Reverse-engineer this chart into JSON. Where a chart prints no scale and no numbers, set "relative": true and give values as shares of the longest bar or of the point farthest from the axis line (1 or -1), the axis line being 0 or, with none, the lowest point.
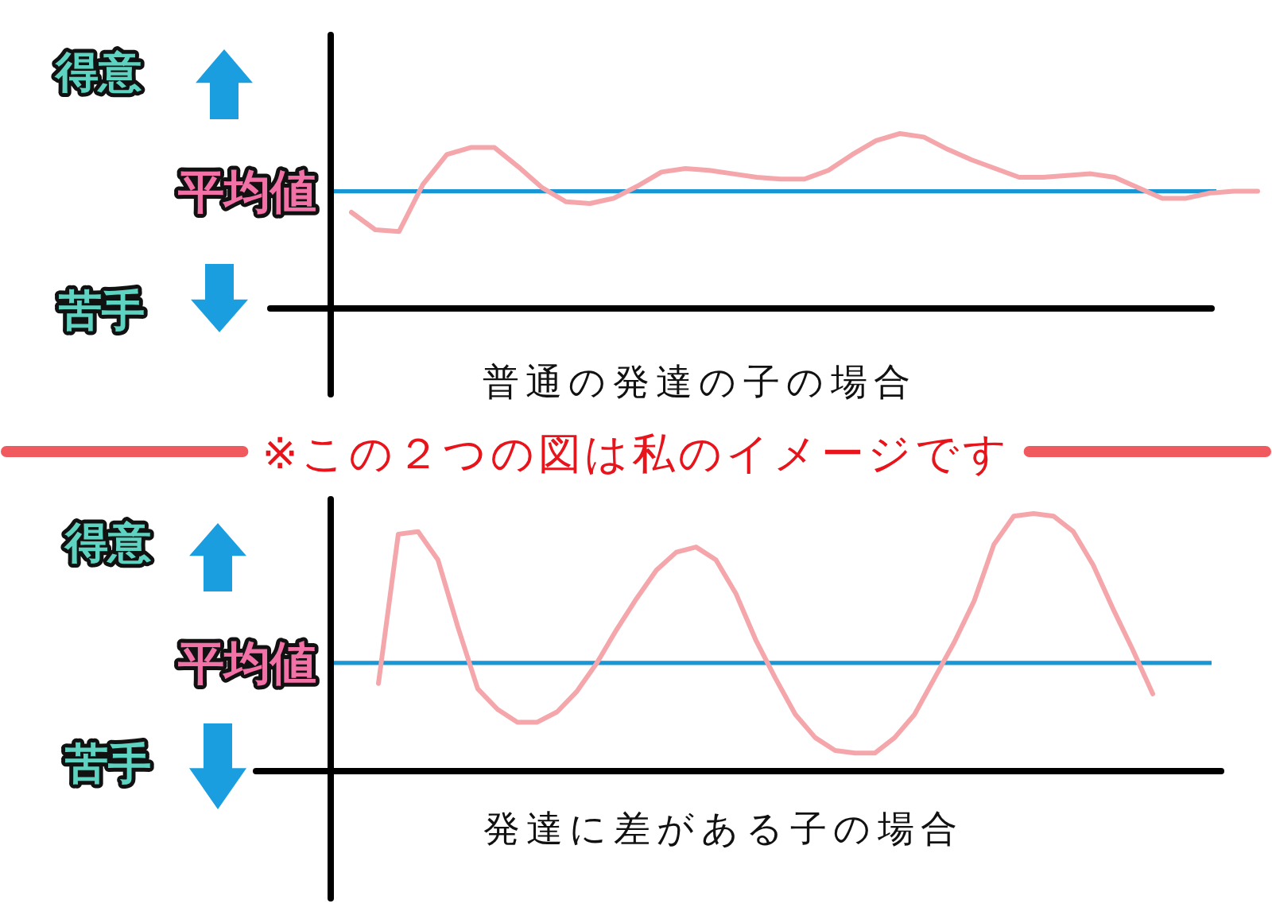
{
  "chart_data": [
    {
      "type": "line",
      "relative": true,
      "xlabel": "普通の発達の子の場合",
      "categories": [
        null,
        null,
        null,
        null,
        null,
        null,
        null,
        null,
        null,
        null,
        null,
        null,
        null,
        null,
        null,
        null,
        null,
        null,
        null,
        null,
        null,
        null,
        null,
        null,
        null,
        null,
        null,
        null,
        null,
        null,
        null,
        null,
        null,
        null,
        null,
        null,
        null,
        null,
        null
      ],
      "series": [
        {
          "color": "#f4a6ab",
          "values": [
            0.55,
            0.45,
            0.44,
            0.71,
            0.88,
            0.92,
            0.92,
            0.81,
            0.69,
            0.61,
            0.6,
            0.63,
            0.7,
            0.78,
            0.8,
            0.79,
            0.77,
            0.75,
            0.74,
            0.74,
            0.79,
            0.88,
            0.96,
            1.0,
            0.98,
            0.91,
            0.85,
            0.8,
            0.75,
            0.75,
            0.76,
            0.77,
            0.75,
            0.69,
            0.63,
            0.63,
            0.66,
            0.67,
            0.67
          ]
        }
      ],
      "ref_lines": [
        {
          "axis": "y",
          "value": 0.67,
          "label": "平均値",
          "color": "#1a96d4"
        }
      ],
      "annotations": [
        "得意",
        "苦手",
        "※この２つの図は私のイメージです"
      ]
    },
    {
      "type": "line",
      "relative": true,
      "xlabel": "発達に差がある子の場合",
      "categories": [
        null,
        null,
        null,
        null,
        null,
        null,
        null,
        null,
        null,
        null,
        null,
        null,
        null,
        null,
        null,
        null,
        null,
        null,
        null,
        null,
        null,
        null,
        null,
        null,
        null,
        null,
        null,
        null,
        null,
        null,
        null,
        null,
        null,
        null,
        null,
        null,
        null,
        null,
        null,
        null
      ],
      "series": [
        {
          "color": "#f4a6ab",
          "values": [
            0.34,
            0.92,
            0.93,
            0.82,
            0.56,
            0.32,
            0.24,
            0.19,
            0.19,
            0.23,
            0.31,
            0.42,
            0.55,
            0.67,
            0.78,
            0.85,
            0.87,
            0.82,
            0.69,
            0.51,
            0.36,
            0.22,
            0.13,
            0.08,
            0.07,
            0.07,
            0.13,
            0.22,
            0.36,
            0.5,
            0.66,
            0.88,
            0.99,
            1.0,
            0.99,
            0.93,
            0.8,
            0.63,
            0.47,
            0.3
          ]
        }
      ],
      "ref_lines": [
        {
          "axis": "y",
          "value": 0.42,
          "label": "平均値",
          "color": "#1a96d4"
        }
      ],
      "annotations": [
        "得意",
        "苦手"
      ]
    }
  ]
}
